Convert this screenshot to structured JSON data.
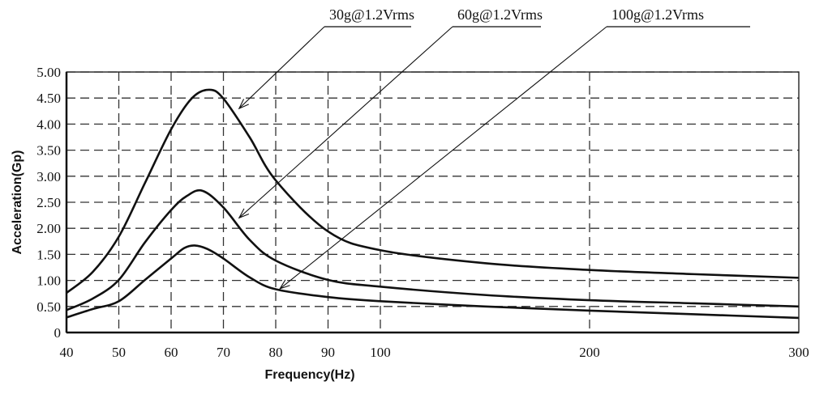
{
  "chart_data": {
    "type": "line",
    "title": "",
    "xlabel": "Frequency(Hz)",
    "ylabel": "Acceleration(Gp)",
    "xlim": [
      40,
      300
    ],
    "ylim": [
      0,
      5
    ],
    "x_scale": "piecewise linear (40-100 expanded, 100-300 compressed)",
    "grid": true,
    "grid_style": "dashed",
    "x_ticks": [
      40,
      50,
      60,
      70,
      80,
      90,
      100,
      200,
      300
    ],
    "x_tick_labels": [
      "40",
      "50",
      "60",
      "70",
      "80",
      "90",
      "100",
      "200",
      "300"
    ],
    "y_ticks": [
      0,
      0.5,
      1,
      1.5,
      2,
      2.5,
      3,
      3.5,
      4,
      4.5,
      5
    ],
    "y_tick_labels": [
      "0",
      "0.50",
      "1.00",
      "1.50",
      "2.00",
      "2.50",
      "3.00",
      "3.50",
      "4.00",
      "4.50",
      "5.00"
    ],
    "line_color": "#111111",
    "series": [
      {
        "name": "30g@1.2Vrms",
        "x": [
          40,
          45,
          50,
          55,
          60,
          64,
          67.3,
          70,
          75,
          80,
          90,
          100,
          150,
          200,
          250,
          300
        ],
        "y": [
          0.76,
          1.16,
          1.84,
          2.87,
          3.9,
          4.5,
          4.66,
          4.49,
          3.75,
          2.92,
          1.94,
          1.58,
          1.33,
          1.2,
          1.12,
          1.05
        ],
        "annotation_point": [
          73,
          4.3
        ]
      },
      {
        "name": "60g@1.2Vrms",
        "x": [
          40,
          45,
          50,
          55,
          60,
          63,
          66,
          70,
          75,
          80,
          90,
          100,
          150,
          200,
          250,
          300
        ],
        "y": [
          0.43,
          0.65,
          1.01,
          1.73,
          2.35,
          2.62,
          2.72,
          2.4,
          1.78,
          1.38,
          1.01,
          0.88,
          0.72,
          0.62,
          0.56,
          0.5
        ],
        "annotation_point": [
          73,
          2.2
        ]
      },
      {
        "name": "100g@1.2Vrms",
        "x": [
          40,
          45,
          50,
          55,
          60,
          62.5,
          64.5,
          67,
          70,
          75,
          80,
          90,
          100,
          150,
          200,
          250,
          300
        ],
        "y": [
          0.29,
          0.45,
          0.6,
          1.01,
          1.42,
          1.62,
          1.67,
          1.6,
          1.42,
          1.06,
          0.83,
          0.68,
          0.6,
          0.5,
          0.42,
          0.35,
          0.28
        ],
        "annotation_point": [
          80.8,
          0.84
        ]
      }
    ]
  }
}
